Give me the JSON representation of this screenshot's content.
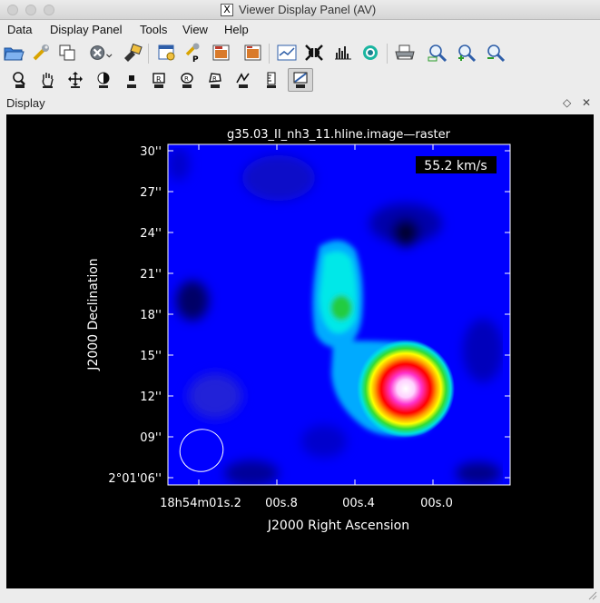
{
  "window": {
    "title": "Viewer Display Panel (AV)"
  },
  "menu": [
    "Data",
    "Display Panel",
    "Tools",
    "View",
    "Help"
  ],
  "toolbar_row1": [
    {
      "name": "open-icon"
    },
    {
      "name": "wrench-icon"
    },
    {
      "name": "copy-panel-icon"
    },
    {
      "name": "close-data-icon"
    },
    {
      "name": "save-icon"
    },
    {
      "name": "panel-options-icon"
    },
    {
      "name": "print-options-icon"
    },
    {
      "name": "export-image-icon"
    },
    {
      "name": "save-restore-icon"
    },
    {
      "name": "spectral-profile-icon"
    },
    {
      "name": "fit-icon"
    },
    {
      "name": "histogram-icon"
    },
    {
      "name": "color-map-icon"
    },
    {
      "name": "printer-icon"
    },
    {
      "name": "zoom-fit-icon"
    },
    {
      "name": "zoom-in-icon"
    },
    {
      "name": "zoom-out-icon"
    }
  ],
  "toolbar_row2": [
    {
      "name": "zoom-tool-icon"
    },
    {
      "name": "pan-tool-icon"
    },
    {
      "name": "move-tool-icon"
    },
    {
      "name": "contrast-tool-icon"
    },
    {
      "name": "point-tool-icon"
    },
    {
      "name": "rect-region-icon"
    },
    {
      "name": "ellipse-region-icon"
    },
    {
      "name": "poly-region-icon"
    },
    {
      "name": "polyline-icon"
    },
    {
      "name": "ruler-icon"
    },
    {
      "name": "position-velocity-icon",
      "active": true
    }
  ],
  "dock": {
    "title": "Display"
  },
  "image": {
    "title": "g35.03_II_nh3_11.hline.image—raster",
    "velocity_label": "55.2 km/s",
    "xlabel": "J2000 Right Ascension",
    "ylabel": "J2000 Declination",
    "yticks": [
      "30''",
      "27''",
      "24''",
      "21''",
      "18''",
      "15''",
      "12''",
      "09''",
      "2°01'06''"
    ],
    "xticks": [
      "18h54m01s.2",
      "00s.8",
      "00s.4",
      "00s.0"
    ],
    "colors": {
      "background": "#0000ff",
      "accent": "#ffffff"
    }
  }
}
